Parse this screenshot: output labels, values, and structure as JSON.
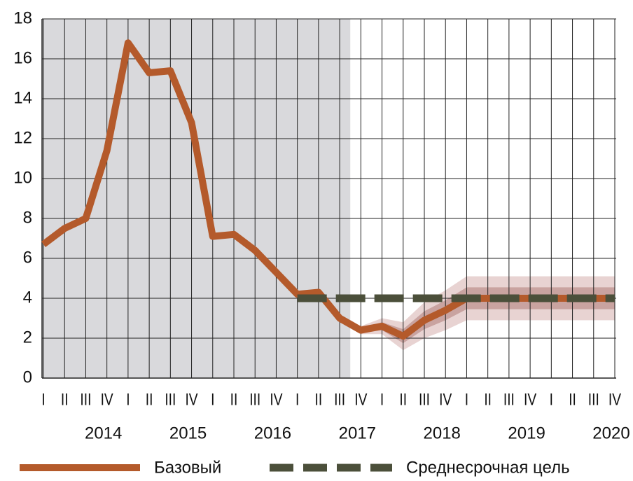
{
  "chart_data": {
    "type": "line",
    "categories": [
      "I",
      "II",
      "III",
      "IV",
      "I",
      "II",
      "III",
      "IV",
      "I",
      "II",
      "III",
      "IV",
      "I",
      "II",
      "III",
      "IV",
      "I",
      "II",
      "III",
      "IV",
      "I",
      "II",
      "III",
      "IV",
      "I",
      "II",
      "III",
      "IV"
    ],
    "years": [
      "2014",
      "2015",
      "2016",
      "2017",
      "2018",
      "2019",
      "2020"
    ],
    "series": [
      {
        "name": "Базовый",
        "color": "#b45a2b",
        "values": [
          6.7,
          7.5,
          8.0,
          11.4,
          16.8,
          15.3,
          15.4,
          12.8,
          7.1,
          7.2,
          6.4,
          5.3,
          4.2,
          4.3,
          3.0,
          2.4,
          2.6,
          2.1,
          2.9,
          3.4,
          4.0,
          4.0,
          4.0,
          4.0,
          4.0,
          4.0,
          4.0,
          4.0
        ]
      },
      {
        "name": "Среднесрочная цель",
        "color": "#4b4f3a",
        "dashed": true,
        "values": [
          null,
          null,
          null,
          null,
          null,
          null,
          null,
          null,
          null,
          null,
          null,
          null,
          4,
          4,
          4,
          4,
          4,
          4,
          4,
          4,
          4,
          4,
          4,
          4,
          4,
          4,
          4,
          4
        ]
      }
    ],
    "fan": [
      {
        "color": "#e8d3d2",
        "lower": [
          null,
          null,
          null,
          null,
          null,
          null,
          null,
          null,
          null,
          null,
          null,
          null,
          null,
          null,
          null,
          2.2,
          2.2,
          1.4,
          2.0,
          2.4,
          2.9,
          2.9,
          2.9,
          2.9,
          2.9,
          2.9,
          2.9,
          2.9
        ],
        "upper": [
          null,
          null,
          null,
          null,
          null,
          null,
          null,
          null,
          null,
          null,
          null,
          null,
          null,
          null,
          null,
          2.6,
          3.0,
          2.8,
          3.8,
          4.4,
          5.1,
          5.1,
          5.1,
          5.1,
          5.1,
          5.1,
          5.1,
          5.1
        ]
      },
      {
        "color": "#c9a3a0",
        "lower": [
          null,
          null,
          null,
          null,
          null,
          null,
          null,
          null,
          null,
          null,
          null,
          null,
          null,
          null,
          null,
          2.3,
          2.4,
          1.75,
          2.45,
          2.9,
          3.45,
          3.45,
          3.45,
          3.45,
          3.45,
          3.45,
          3.45,
          3.45
        ],
        "upper": [
          null,
          null,
          null,
          null,
          null,
          null,
          null,
          null,
          null,
          null,
          null,
          null,
          null,
          null,
          null,
          2.5,
          2.8,
          2.45,
          3.35,
          3.9,
          4.55,
          4.55,
          4.55,
          4.55,
          4.55,
          4.55,
          4.55,
          4.55
        ]
      }
    ],
    "history_shade": {
      "color": "#d9d9dc",
      "end_index": 14.5
    },
    "ylim": [
      0,
      18
    ],
    "yticks": [
      0,
      2,
      4,
      6,
      8,
      10,
      12,
      14,
      16,
      18
    ],
    "grid": true
  }
}
